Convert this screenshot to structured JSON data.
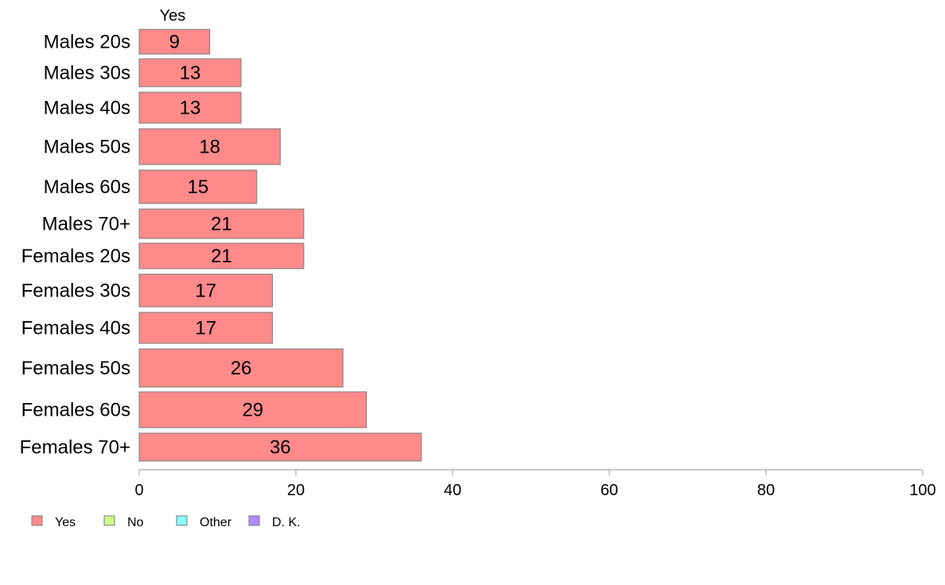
{
  "chart_data": {
    "type": "bar",
    "orientation": "horizontal",
    "column_header": "Yes",
    "categories": [
      "Males 20s",
      "Males 30s",
      "Males 40s",
      "Males 50s",
      "Males 60s",
      "Males 70+",
      "Females 20s",
      "Females 30s",
      "Females 40s",
      "Females 50s",
      "Females 60s",
      "Females 70+"
    ],
    "series": [
      {
        "name": "Yes",
        "color": "#FF8A8A",
        "values": [
          9,
          13,
          13,
          18,
          15,
          21,
          21,
          17,
          17,
          26,
          29,
          36
        ]
      }
    ],
    "value_axis": {
      "ticks": [
        "0",
        "20",
        "40",
        "60",
        "80",
        "100"
      ],
      "range": [
        0,
        100
      ]
    },
    "legend": {
      "position": "bottom-left",
      "items": [
        {
          "label": "Yes",
          "color": "#FF8A8A"
        },
        {
          "label": "No",
          "color": "#CCFF8A"
        },
        {
          "label": "Other",
          "color": "#8AFFFF"
        },
        {
          "label": "D. K.",
          "color": "#B08AFF"
        }
      ]
    },
    "grid": false
  }
}
